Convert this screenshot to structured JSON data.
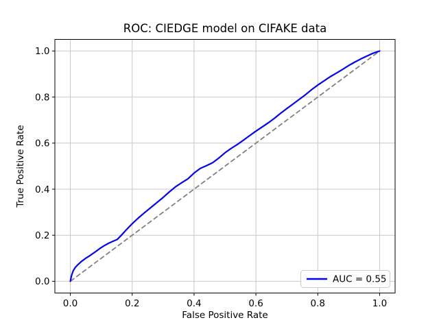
{
  "chart_data": {
    "type": "line",
    "title": "ROC: CIEDGE model on CIFAKE data",
    "xlabel": "False Positive Rate",
    "ylabel": "True Positive Rate",
    "xlim": [
      -0.05,
      1.05
    ],
    "ylim": [
      -0.05,
      1.05
    ],
    "grid": true,
    "legend_position": "lower right",
    "x_ticks": [
      0.0,
      0.2,
      0.4,
      0.6,
      0.8,
      1.0
    ],
    "y_ticks": [
      0.0,
      0.2,
      0.4,
      0.6,
      0.8,
      1.0
    ],
    "x_tick_labels": [
      "0.0",
      "0.2",
      "0.4",
      "0.6",
      "0.8",
      "1.0"
    ],
    "y_tick_labels": [
      "0.0",
      "0.2",
      "0.4",
      "0.6",
      "0.8",
      "1.0"
    ],
    "auc": 0.55,
    "colors": {
      "roc_curve": "#0000ff",
      "chance_diagonal": "#808080",
      "gridlines": "#c9c9c9",
      "legend_edge": "#cccccc"
    },
    "series": [
      {
        "name": "AUC = 0.55",
        "role": "roc-curve",
        "color": "#0000ff",
        "style": "solid",
        "in_legend": true,
        "points": [
          [
            0.0,
            0.0
          ],
          [
            0.004,
            0.025
          ],
          [
            0.009,
            0.045
          ],
          [
            0.016,
            0.06
          ],
          [
            0.025,
            0.073
          ],
          [
            0.035,
            0.085
          ],
          [
            0.05,
            0.1
          ],
          [
            0.065,
            0.113
          ],
          [
            0.08,
            0.127
          ],
          [
            0.095,
            0.142
          ],
          [
            0.11,
            0.155
          ],
          [
            0.125,
            0.166
          ],
          [
            0.14,
            0.175
          ],
          [
            0.152,
            0.182
          ],
          [
            0.165,
            0.2
          ],
          [
            0.18,
            0.222
          ],
          [
            0.2,
            0.25
          ],
          [
            0.22,
            0.275
          ],
          [
            0.24,
            0.298
          ],
          [
            0.26,
            0.32
          ],
          [
            0.28,
            0.342
          ],
          [
            0.3,
            0.364
          ],
          [
            0.32,
            0.388
          ],
          [
            0.34,
            0.41
          ],
          [
            0.36,
            0.428
          ],
          [
            0.38,
            0.445
          ],
          [
            0.4,
            0.47
          ],
          [
            0.42,
            0.49
          ],
          [
            0.44,
            0.502
          ],
          [
            0.46,
            0.515
          ],
          [
            0.48,
            0.535
          ],
          [
            0.5,
            0.558
          ],
          [
            0.52,
            0.577
          ],
          [
            0.54,
            0.594
          ],
          [
            0.56,
            0.613
          ],
          [
            0.58,
            0.633
          ],
          [
            0.6,
            0.652
          ],
          [
            0.62,
            0.67
          ],
          [
            0.64,
            0.688
          ],
          [
            0.66,
            0.708
          ],
          [
            0.68,
            0.73
          ],
          [
            0.7,
            0.75
          ],
          [
            0.72,
            0.77
          ],
          [
            0.74,
            0.79
          ],
          [
            0.76,
            0.81
          ],
          [
            0.78,
            0.832
          ],
          [
            0.8,
            0.852
          ],
          [
            0.82,
            0.87
          ],
          [
            0.84,
            0.888
          ],
          [
            0.86,
            0.904
          ],
          [
            0.88,
            0.92
          ],
          [
            0.9,
            0.937
          ],
          [
            0.92,
            0.952
          ],
          [
            0.94,
            0.966
          ],
          [
            0.96,
            0.979
          ],
          [
            0.98,
            0.991
          ],
          [
            1.0,
            1.0
          ]
        ]
      },
      {
        "name": "chance-diagonal",
        "role": "reference-line",
        "color": "#808080",
        "style": "dashed",
        "in_legend": false,
        "points": [
          [
            0.0,
            0.0
          ],
          [
            1.0,
            1.0
          ]
        ]
      }
    ]
  },
  "legend": {
    "label": "AUC = 0.55"
  }
}
